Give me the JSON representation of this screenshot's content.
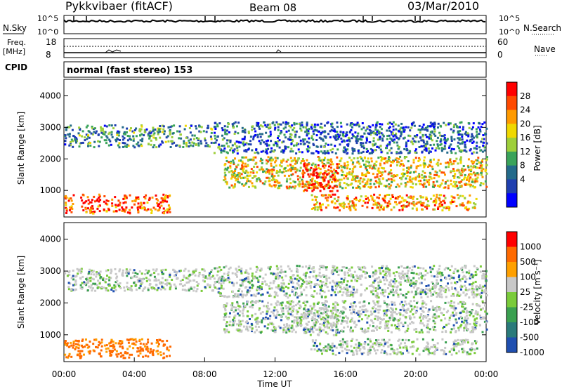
{
  "header": {
    "title": "Pykkvibaer (fitACF)",
    "beam": "Beam 08",
    "date": "03/Mar/2010"
  },
  "nsky_panel": {
    "left_label": "N.Sky",
    "left_ticks": [
      "10^5",
      "10^0"
    ],
    "right_ticks": [
      "10^5",
      "10^0"
    ],
    "right_label": "N.Search"
  },
  "freq_panel": {
    "left_label_1": "Freq.",
    "left_label_2": "[MHz]",
    "left_ticks": [
      "18",
      "8"
    ],
    "right_ticks": [
      "60",
      "0"
    ],
    "right_label": "Nave",
    "cpid_label": "CPID"
  },
  "mode_text": "normal (fast stereo) 153",
  "chart_data": [
    {
      "type": "heatmap",
      "name": "Power",
      "ylabel": "Slant Range [km]",
      "yticks": [
        "4000",
        "3000",
        "2000",
        "1000"
      ],
      "ylim": [
        180,
        4500
      ],
      "xlim": [
        0,
        24
      ],
      "colorbar": {
        "label": "Power [dB]",
        "ticks": [
          "28",
          "24",
          "20",
          "16",
          "12",
          "8",
          "4"
        ],
        "colors": [
          "#ff0000",
          "#ff4a00",
          "#ff9a00",
          "#f0d800",
          "#9ecf3a",
          "#3aa35a",
          "#236a8a",
          "#1f3faf",
          "#0000ff"
        ]
      },
      "scatter_echo_bands": [
        {
          "start_h": 0.0,
          "end_h": 8.5,
          "range_km": [
            2400,
            3100
          ],
          "level": 0.35
        },
        {
          "start_h": 8.5,
          "end_h": 24.0,
          "range_km": [
            2200,
            3200
          ],
          "level": 0.25
        },
        {
          "start_h": 0.0,
          "end_h": 6.0,
          "range_km": [
            300,
            900
          ],
          "level": 0.85
        },
        {
          "start_h": 9.0,
          "end_h": 24.0,
          "range_km": [
            1100,
            2100
          ],
          "level": 0.6
        },
        {
          "start_h": 13.5,
          "end_h": 15.5,
          "range_km": [
            1000,
            1900
          ],
          "level": 0.95
        },
        {
          "start_h": 14.0,
          "end_h": 23.5,
          "range_km": [
            400,
            900
          ],
          "level": 0.7
        }
      ]
    },
    {
      "type": "heatmap",
      "name": "Velocity",
      "ylabel": "Slant Range [km]",
      "yticks": [
        "4000",
        "3000",
        "2000",
        "1000"
      ],
      "ylim": [
        180,
        4500
      ],
      "xlim": [
        0,
        24
      ],
      "colorbar": {
        "label": "Velocity [m s⁻¹]",
        "ticks": [
          "1000",
          "500",
          "100",
          "25",
          "-25",
          "-100",
          "-500",
          "-1000"
        ],
        "colors": [
          "#ff0000",
          "#ff6a00",
          "#ffa000",
          "#c8c8c8",
          "#7acb3a",
          "#3aa050",
          "#2a7a7a",
          "#1f4fb0"
        ]
      },
      "x": [
        "00:00",
        "04:00",
        "08:00",
        "12:00",
        "16:00",
        "20:00",
        "00:00"
      ],
      "xlabel": "Time UT"
    }
  ]
}
